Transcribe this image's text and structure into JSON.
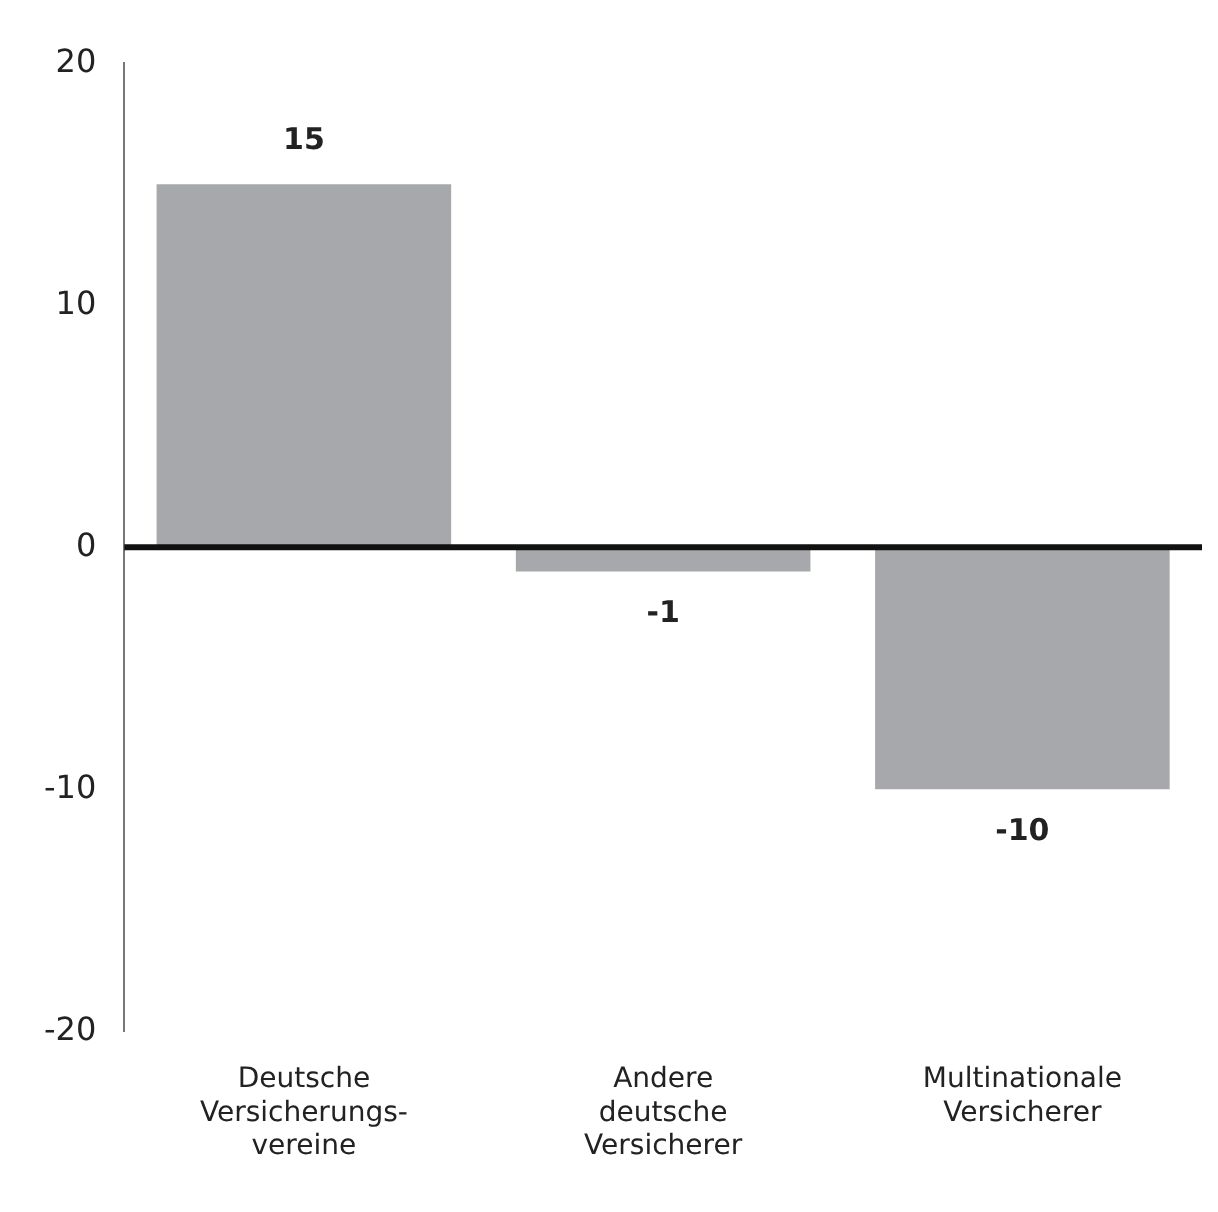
{
  "chart_data": {
    "type": "bar",
    "categories": [
      "Deutsche\nVersicherungs-\nvereine",
      "Andere\ndeutsche\nVersicherer",
      "Multinationale\nVersicherer"
    ],
    "values": [
      15,
      -1,
      -10
    ],
    "color": "#a7a8ab",
    "ylim": [
      -20,
      20
    ],
    "yticks": [
      -20,
      -10,
      0,
      10,
      20
    ],
    "ref_lines": [
      {
        "axis": "y",
        "value": 0,
        "color": "#111111"
      }
    ],
    "legend": false,
    "data_labels": true
  }
}
